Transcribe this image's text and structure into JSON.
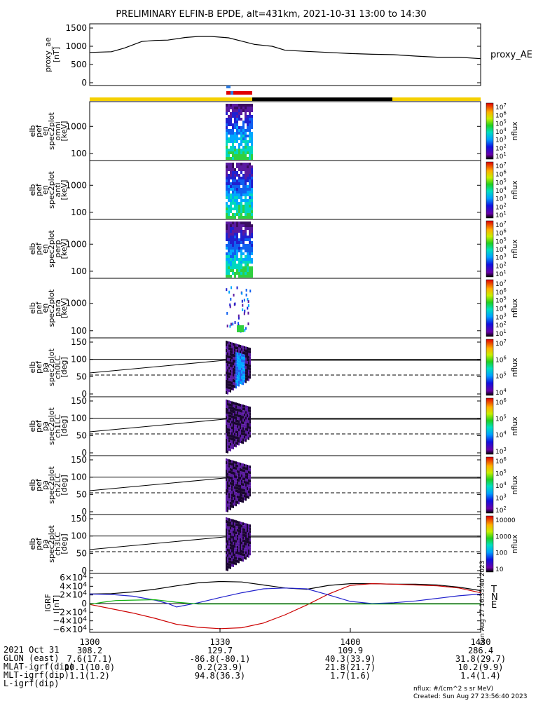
{
  "chart_data": {
    "type": "line",
    "title": "PRELIMINARY ELFIN-B EPDE, alt=431km, 2021-10-31 13:00 to 14:30",
    "x_time_range": [
      "13:00",
      "14:30"
    ],
    "panels": [
      {
        "id": "proxy_ae",
        "ylabel": [
          "proxy_ae",
          "[nT]"
        ],
        "yticks": [
          "1500",
          "1000",
          "500",
          "0"
        ],
        "ylim": [
          0,
          1500
        ],
        "series": [
          {
            "name": "proxy_AE",
            "color": "#000000",
            "x": [
              0,
              5,
              8,
              12,
              15,
              18,
              22,
              25,
              28,
              32,
              35,
              38,
              42,
              45,
              50,
              55,
              60,
              65,
              70,
              75,
              80,
              85,
              90
            ],
            "y": [
              830,
              850,
              950,
              1130,
              1160,
              1170,
              1240,
              1270,
              1270,
              1230,
              1140,
              1050,
              1000,
              890,
              860,
              830,
              800,
              780,
              770,
              730,
              700,
              700,
              660
            ]
          }
        ]
      },
      {
        "id": "omni",
        "ylabel": [
          "elb",
          "pef",
          "en",
          "spec2plot",
          "omni",
          "[keV]"
        ],
        "yticks": [
          "1000",
          "100"
        ],
        "colorbar": {
          "labels": [
            "10^7",
            "10^6",
            "10^5",
            "10^4",
            "10^3",
            "10^2",
            "10^1"
          ],
          "unit": "nflux"
        }
      },
      {
        "id": "anti",
        "ylabel": [
          "elb",
          "pef",
          "en",
          "spec2plot",
          "anti",
          "[keV]"
        ],
        "yticks": [
          "1000",
          "100"
        ],
        "colorbar": {
          "labels": [
            "10^7",
            "10^6",
            "10^5",
            "10^4",
            "10^3",
            "10^2",
            "10^1"
          ],
          "unit": "nflux"
        }
      },
      {
        "id": "perp",
        "ylabel": [
          "elb",
          "pef",
          "en",
          "spec2plot",
          "perp",
          "[keV]"
        ],
        "yticks": [
          "1000",
          "100"
        ],
        "colorbar": {
          "labels": [
            "10^7",
            "10^6",
            "10^5",
            "10^4",
            "10^3",
            "10^2",
            "10^1"
          ],
          "unit": "nflux"
        }
      },
      {
        "id": "para",
        "ylabel": [
          "elb",
          "pef",
          "en",
          "spec2plot",
          "para",
          "[keV]"
        ],
        "yticks": [
          "1000",
          "100"
        ],
        "colorbar": {
          "labels": [
            "10^7",
            "10^6",
            "10^5",
            "10^4",
            "10^3",
            "10^2",
            "10^1"
          ],
          "unit": "nflux"
        }
      },
      {
        "id": "ch0LC",
        "ylabel": [
          "elb",
          "pef",
          "pa",
          "spec2plot",
          "ch0LC",
          "[deg]"
        ],
        "yticks": [
          "150",
          "100",
          "50",
          "0"
        ],
        "colorbar": {
          "labels": [
            "10^7",
            "10^6",
            "10^5",
            "10^4"
          ],
          "unit": "nflux"
        }
      },
      {
        "id": "ch1LC",
        "ylabel": [
          "elb",
          "pef",
          "pa",
          "spec2plot",
          "ch1LC",
          "[deg]"
        ],
        "yticks": [
          "150",
          "100",
          "50",
          "0"
        ],
        "colorbar": {
          "labels": [
            "10^6",
            "10^5",
            "10^4",
            "10^3"
          ],
          "unit": "nflux"
        }
      },
      {
        "id": "ch2LC",
        "ylabel": [
          "elb",
          "pef",
          "pa",
          "spec2plot",
          "ch2LC",
          "[deg]"
        ],
        "yticks": [
          "150",
          "100",
          "50",
          "0"
        ],
        "colorbar": {
          "labels": [
            "10^6",
            "10^5",
            "10^4",
            "10^3",
            "10^2"
          ],
          "unit": "nflux"
        }
      },
      {
        "id": "ch3LC",
        "ylabel": [
          "elb",
          "pef",
          "pa",
          "spec2plot",
          "ch3LC",
          "[deg]"
        ],
        "yticks": [
          "150",
          "100",
          "50",
          "0"
        ],
        "colorbar": {
          "labels": [
            "10000",
            "1000",
            "100",
            "10"
          ],
          "unit": "nflux"
        }
      },
      {
        "id": "igrf",
        "ylabel": [
          "IGRF",
          "[nT]"
        ],
        "yticks": [
          "6×10^4",
          "4×10^4",
          "2×10^4",
          "0",
          "−2×10^4",
          "−4×10^4",
          "−6×10^4"
        ],
        "ylim": [
          -60000,
          60000
        ],
        "series": [
          {
            "name": "T",
            "color": "#000000",
            "x": [
              0,
              5,
              10,
              15,
              20,
              25,
              30,
              35,
              40,
              45,
              50,
              55,
              60,
              65,
              70,
              75,
              80,
              85,
              90
            ],
            "y": [
              22000,
              23000,
              27000,
              33000,
              41000,
              48000,
              51000,
              50000,
              43000,
              36000,
              33000,
              42000,
              46000,
              46000,
              45000,
              45000,
              43000,
              38000,
              30000
            ]
          },
          {
            "name": "N",
            "color": "#cc0000",
            "x": [
              0,
              5,
              10,
              15,
              20,
              25,
              30,
              35,
              40,
              45,
              50,
              55,
              60,
              65,
              70,
              75,
              80,
              85,
              90
            ],
            "y": [
              -2000,
              -12000,
              -22000,
              -34000,
              -48000,
              -55000,
              -58000,
              -56000,
              -45000,
              -26000,
              -3000,
              22000,
              42000,
              46000,
              45000,
              43000,
              41000,
              36000,
              25000
            ]
          },
          {
            "name": "E",
            "color": "#2020cc",
            "x": [
              0,
              5,
              10,
              15,
              18,
              20,
              25,
              30,
              35,
              40,
              45,
              50,
              55,
              60,
              65,
              70,
              75,
              80,
              85,
              90
            ],
            "y": [
              22000,
              21000,
              17000,
              8000,
              0,
              -8000,
              2000,
              14000,
              25000,
              34000,
              36000,
              34000,
              20000,
              5000,
              0,
              2000,
              6000,
              12000,
              18000,
              22000
            ]
          },
          {
            "name": "D",
            "color": "#10b010",
            "x": [
              0,
              3,
              6,
              10,
              15,
              20,
              25,
              30,
              40,
              50,
              60,
              70,
              80,
              85,
              90
            ],
            "y": [
              -2000,
              3000,
              7000,
              8000,
              9000,
              3000,
              -1000,
              -1000,
              -1000,
              -1000,
              -1000,
              -1000,
              -1000,
              -1000,
              -1000
            ]
          }
        ],
        "legend": [
          "T",
          "N",
          "E"
        ]
      }
    ],
    "footer": {
      "rows": [
        {
          "label": "2021 Oct 31",
          "values": [
            "1300",
            "1330",
            "1400",
            "1430"
          ]
        },
        {
          "label": "GLON (east)",
          "values": [
            "308.2",
            "129.7",
            "109.9",
            "286.4"
          ]
        },
        {
          "label": "MLAT-igrf(dip)",
          "values": [
            "7.6(17.1)",
            "-86.8(-80.1)",
            "40.3(33.9)",
            "31.8(29.7)"
          ]
        },
        {
          "label": "MLT-igrf(dip)",
          "values": [
            "10.1(10.0)",
            "0.2(23.9)",
            "21.8(21.7)",
            "10.2(9.9)"
          ]
        },
        {
          "label": "L-igrf(dip)",
          "values": [
            "1.1(1.2)",
            "94.8(36.3)",
            "1.7(1.6)",
            "1.4(1.4)"
          ]
        }
      ],
      "flux_unit": "nflux: #/(cm^2 s sr MeV)",
      "created": "Created: Sun Aug 27 23:56:40 2023",
      "side_stamp": "Sun Aug 27 16:35:40 2023"
    }
  }
}
